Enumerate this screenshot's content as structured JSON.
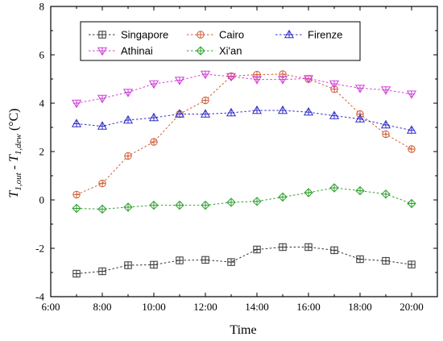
{
  "chart_data": {
    "type": "line",
    "xlabel": "Time",
    "ylabel_parts": [
      "T",
      "1,out",
      " - T",
      "1,dew",
      " (°C)"
    ],
    "x_ticks": [
      "6:00",
      "8:00",
      "10:00",
      "12:00",
      "14:00",
      "16:00",
      "18:00",
      "20:00"
    ],
    "x_tick_hours": [
      6,
      8,
      10,
      12,
      14,
      16,
      18,
      20
    ],
    "xlim": [
      6,
      21
    ],
    "ylim": [
      -4,
      8
    ],
    "y_ticks": [
      "-4",
      "-2",
      "0",
      "2",
      "4",
      "6",
      "8"
    ],
    "y_tick_values": [
      -4,
      -2,
      0,
      2,
      4,
      6,
      8
    ],
    "x": [
      7,
      8,
      9,
      10,
      11,
      12,
      13,
      14,
      15,
      16,
      17,
      18,
      19,
      20
    ],
    "legend_position": "top-center",
    "series": [
      {
        "name": "Singapore",
        "color": "#333333",
        "marker": "square-plus",
        "values": [
          -3.05,
          -2.95,
          -2.7,
          -2.68,
          -2.5,
          -2.48,
          -2.57,
          -2.05,
          -1.95,
          -1.95,
          -2.08,
          -2.45,
          -2.52,
          -2.67
        ]
      },
      {
        "name": "Cairo",
        "color": "#d05a32",
        "marker": "circle-plus",
        "values": [
          0.22,
          0.68,
          1.82,
          2.4,
          3.55,
          4.12,
          5.12,
          5.18,
          5.2,
          5.0,
          4.58,
          3.55,
          2.72,
          2.1
        ]
      },
      {
        "name": "Firenze",
        "color": "#3030c8",
        "marker": "triangle-up-plus",
        "values": [
          3.15,
          3.05,
          3.3,
          3.4,
          3.55,
          3.55,
          3.6,
          3.7,
          3.7,
          3.63,
          3.48,
          3.35,
          3.1,
          2.88
        ]
      },
      {
        "name": "Athinai",
        "color": "#d040d8",
        "marker": "triangle-down-plus",
        "values": [
          4.0,
          4.2,
          4.45,
          4.8,
          4.95,
          5.2,
          5.1,
          4.98,
          4.98,
          5.02,
          4.8,
          4.62,
          4.55,
          4.38
        ]
      },
      {
        "name": "Xi'an",
        "color": "#30a030",
        "marker": "diamond-plus",
        "values": [
          -0.35,
          -0.38,
          -0.3,
          -0.22,
          -0.22,
          -0.22,
          -0.1,
          -0.06,
          0.12,
          0.3,
          0.5,
          0.38,
          0.24,
          -0.15
        ]
      }
    ]
  }
}
